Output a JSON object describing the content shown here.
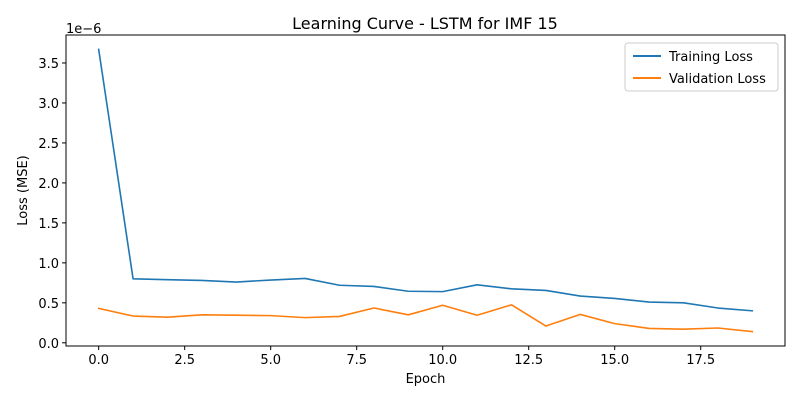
{
  "chart_data": {
    "type": "line",
    "title": "Learning Curve - LSTM for IMF 15",
    "xlabel": "Epoch",
    "ylabel": "Loss (MSE)",
    "y_offset_label": "1e−6",
    "y_scale_factor": 1e-06,
    "xlim": [
      -0.95,
      19.95
    ],
    "ylim": [
      -0.04,
      3.85
    ],
    "x_ticks": [
      0.0,
      2.5,
      5.0,
      7.5,
      10.0,
      12.5,
      15.0,
      17.5
    ],
    "x_tick_labels": [
      "0.0",
      "2.5",
      "5.0",
      "7.5",
      "10.0",
      "12.5",
      "15.0",
      "17.5"
    ],
    "y_ticks": [
      0.0,
      0.5,
      1.0,
      1.5,
      2.0,
      2.5,
      3.0,
      3.5
    ],
    "y_tick_labels": [
      "0.0",
      "0.5",
      "1.0",
      "1.5",
      "2.0",
      "2.5",
      "3.0",
      "3.5"
    ],
    "grid": false,
    "legend_position": "top-right",
    "x": [
      0,
      1,
      2,
      3,
      4,
      5,
      6,
      7,
      8,
      9,
      10,
      11,
      12,
      13,
      14,
      15,
      16,
      17,
      18,
      19
    ],
    "series": [
      {
        "name": "Training Loss",
        "color": "#1f77b4",
        "values": [
          3.67,
          0.8,
          0.79,
          0.78,
          0.76,
          0.785,
          0.805,
          0.72,
          0.705,
          0.645,
          0.64,
          0.725,
          0.675,
          0.655,
          0.585,
          0.555,
          0.51,
          0.5,
          0.435,
          0.4
        ]
      },
      {
        "name": "Validation Loss",
        "color": "#ff7f0e",
        "values": [
          0.43,
          0.335,
          0.32,
          0.35,
          0.345,
          0.34,
          0.315,
          0.33,
          0.435,
          0.35,
          0.47,
          0.345,
          0.475,
          0.21,
          0.355,
          0.24,
          0.18,
          0.17,
          0.185,
          0.14
        ]
      }
    ]
  }
}
